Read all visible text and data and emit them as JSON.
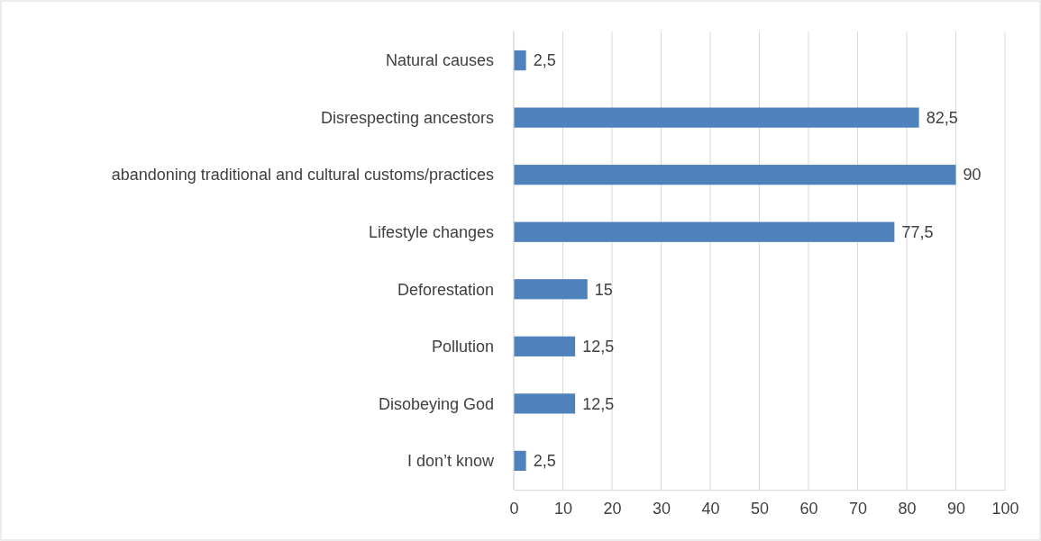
{
  "chart_data": {
    "type": "bar",
    "orientation": "horizontal",
    "categories": [
      "Natural causes",
      "Disrespecting ancestors",
      "abandoning traditional and cultural customs/practices",
      "Lifestyle changes",
      "Deforestation",
      "Pollution",
      "Disobeying God",
      "I don’t know"
    ],
    "values": [
      2.5,
      82.5,
      90,
      77.5,
      15,
      12.5,
      12.5,
      2.5
    ],
    "value_labels": [
      "2,5",
      "82,5",
      "90",
      "77,5",
      "15",
      "12,5",
      "12,5",
      "2,5"
    ],
    "color": "#4f81bd",
    "xlim": [
      0,
      100
    ],
    "xticks": [
      0,
      10,
      20,
      30,
      40,
      50,
      60,
      70,
      80,
      90,
      100
    ],
    "grid": "x"
  }
}
